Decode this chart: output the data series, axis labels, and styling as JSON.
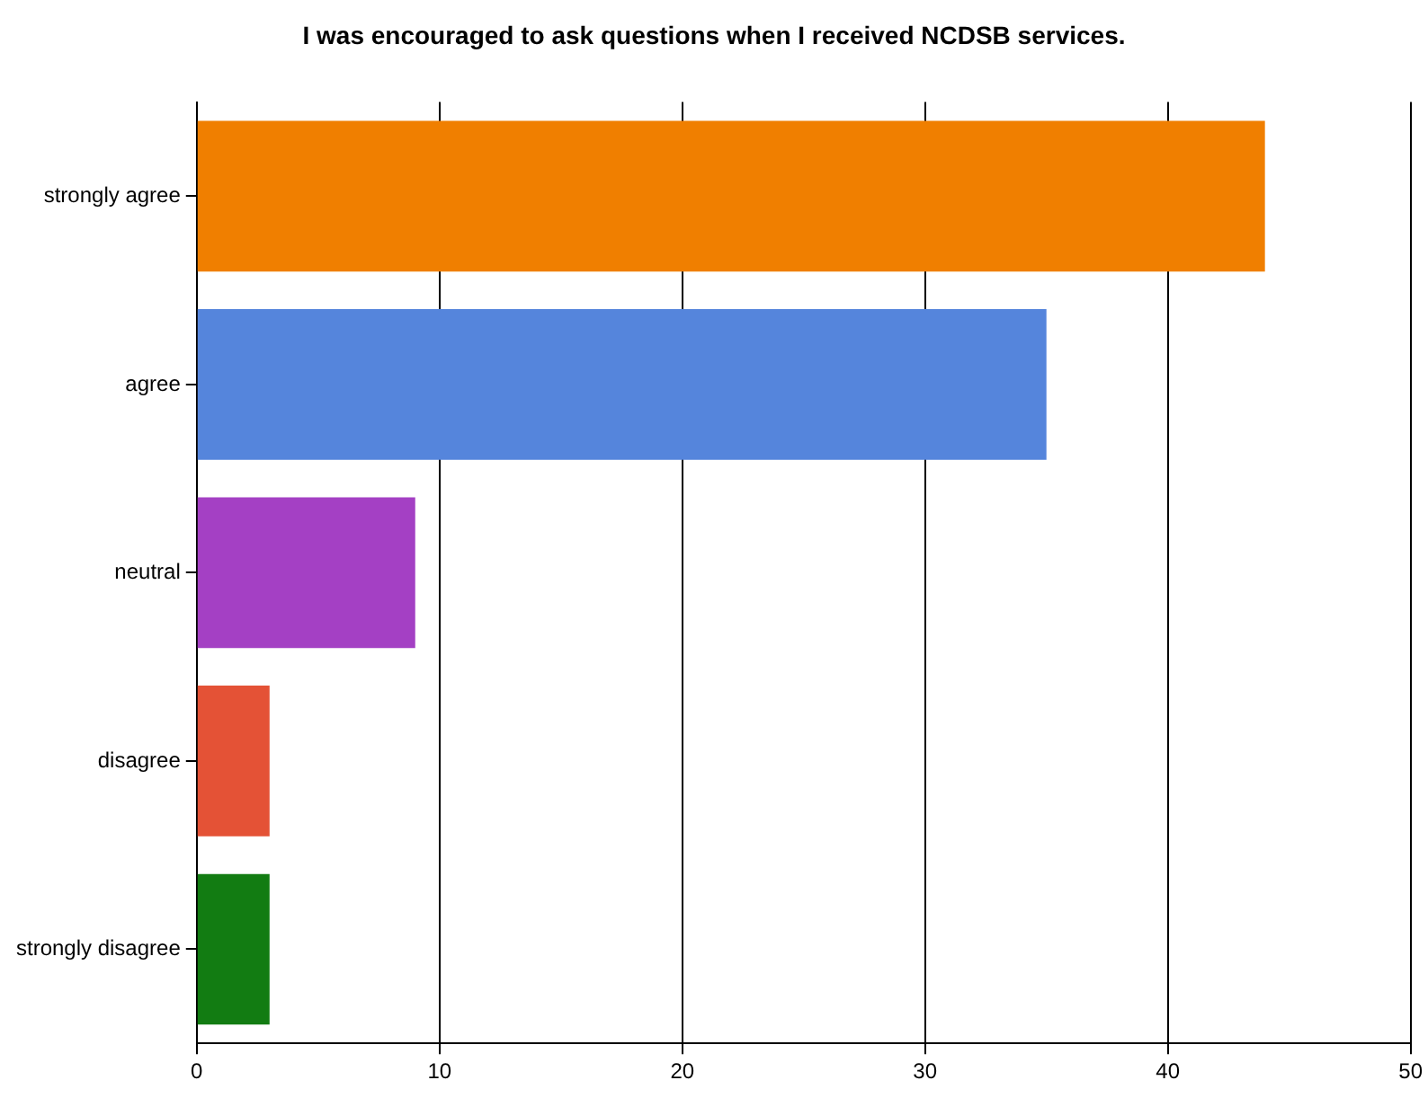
{
  "chart_data": {
    "type": "bar",
    "orientation": "horizontal",
    "title": "I was encouraged to ask questions when I received NCDSB services.",
    "categories": [
      "strongly agree",
      "agree",
      "neutral",
      "disagree",
      "strongly disagree"
    ],
    "values": [
      44,
      35,
      9,
      3,
      3
    ],
    "colors": [
      "#f07f00",
      "#5585dc",
      "#a440c4",
      "#e45236",
      "#127c12"
    ],
    "xlim": [
      0,
      50
    ],
    "xticks": [
      0,
      10,
      20,
      30,
      40,
      50
    ],
    "grid": "x",
    "legend": false
  }
}
